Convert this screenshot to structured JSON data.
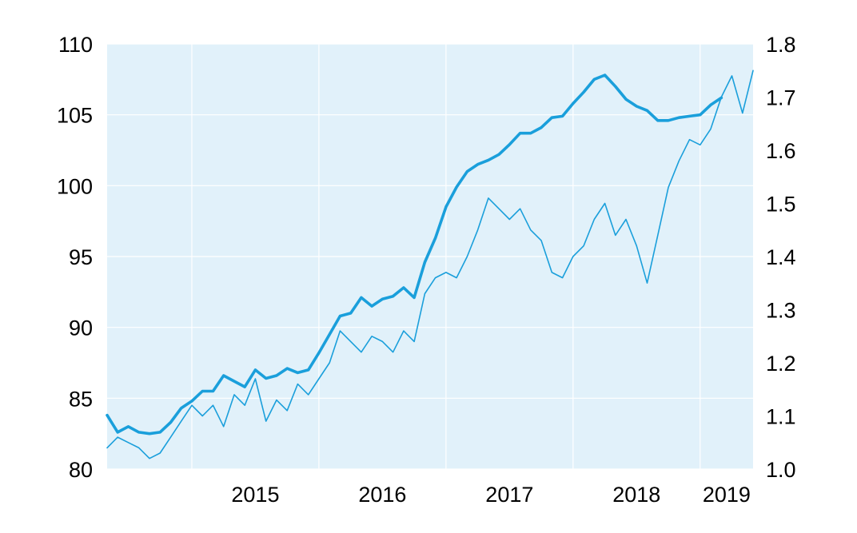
{
  "chart_data": {
    "type": "line",
    "title": "",
    "xlabel": "",
    "ylabel": "",
    "x_axis": {
      "type": "date",
      "range": [
        "2014-05",
        "2019-06"
      ],
      "ticks": [
        "2015",
        "2016",
        "2017",
        "2018",
        "2019"
      ]
    },
    "y_left": {
      "range": [
        80,
        110
      ],
      "ticks": [
        "80",
        "85",
        "90",
        "95",
        "100",
        "105",
        "110"
      ]
    },
    "y_right": {
      "range": [
        1.0,
        1.8
      ],
      "ticks": [
        "1.0",
        "1.1",
        "1.2",
        "1.3",
        "1.4",
        "1.5",
        "1.6",
        "1.7",
        "1.8"
      ]
    },
    "grid": true,
    "legend": "none",
    "colors": {
      "line": "#1a9fdb",
      "plot_background": "#e1f1fa",
      "grid": "#ffffff"
    },
    "series": [
      {
        "axis": "left",
        "line_style": "thick",
        "x": [
          "2014-05",
          "2014-06",
          "2014-07",
          "2014-08",
          "2014-09",
          "2014-10",
          "2014-11",
          "2014-12",
          "2015-01",
          "2015-02",
          "2015-03",
          "2015-04",
          "2015-05",
          "2015-06",
          "2015-07",
          "2015-08",
          "2015-09",
          "2015-10",
          "2015-11",
          "2015-12",
          "2016-01",
          "2016-02",
          "2016-03",
          "2016-04",
          "2016-05",
          "2016-06",
          "2016-07",
          "2016-08",
          "2016-09",
          "2016-10",
          "2016-11",
          "2016-12",
          "2017-01",
          "2017-02",
          "2017-03",
          "2017-04",
          "2017-05",
          "2017-06",
          "2017-07",
          "2017-08",
          "2017-09",
          "2017-10",
          "2017-11",
          "2017-12",
          "2018-01",
          "2018-02",
          "2018-03",
          "2018-04",
          "2018-05",
          "2018-06",
          "2018-07",
          "2018-08",
          "2018-09",
          "2018-10",
          "2018-11",
          "2018-12",
          "2019-01",
          "2019-02",
          "2019-03",
          "2019-04"
        ],
        "values": [
          83.8,
          82.6,
          83,
          82.6,
          82.5,
          82.6,
          83.3,
          84.3,
          84.8,
          85.5,
          85.5,
          86.6,
          86.2,
          85.8,
          87,
          86.4,
          86.6,
          87.1,
          86.8,
          87,
          88.2,
          89.5,
          90.8,
          91,
          92.1,
          91.5,
          92,
          92.2,
          92.8,
          92.1,
          94.6,
          96.3,
          98.5,
          99.9,
          101,
          101.5,
          101.8,
          102.2,
          102.9,
          103.7,
          103.7,
          104.1,
          104.8,
          104.9,
          105.8,
          106.6,
          107.5,
          107.8,
          107,
          106.1,
          105.6,
          105.3,
          104.6,
          104.6,
          104.8,
          104.9,
          105,
          105.7,
          106.2,
          null
        ]
      },
      {
        "axis": "right",
        "line_style": "thin",
        "x": [
          "2014-05",
          "2014-06",
          "2014-07",
          "2014-08",
          "2014-09",
          "2014-10",
          "2014-11",
          "2014-12",
          "2015-01",
          "2015-02",
          "2015-03",
          "2015-04",
          "2015-05",
          "2015-06",
          "2015-07",
          "2015-08",
          "2015-09",
          "2015-10",
          "2015-11",
          "2015-12",
          "2016-01",
          "2016-02",
          "2016-03",
          "2016-04",
          "2016-05",
          "2016-06",
          "2016-07",
          "2016-08",
          "2016-09",
          "2016-10",
          "2016-11",
          "2016-12",
          "2017-01",
          "2017-02",
          "2017-03",
          "2017-04",
          "2017-05",
          "2017-06",
          "2017-07",
          "2017-08",
          "2017-09",
          "2017-10",
          "2017-11",
          "2017-12",
          "2018-01",
          "2018-02",
          "2018-03",
          "2018-04",
          "2018-05",
          "2018-06",
          "2018-07",
          "2018-08",
          "2018-09",
          "2018-10",
          "2018-11",
          "2018-12",
          "2019-01",
          "2019-02",
          "2019-03",
          "2019-04",
          "2019-05",
          "2019-06"
        ],
        "values": [
          1.04,
          1.06,
          1.05,
          1.04,
          1.02,
          1.03,
          1.06,
          1.09,
          1.12,
          1.1,
          1.12,
          1.08,
          1.14,
          1.12,
          1.17,
          1.09,
          1.13,
          1.11,
          1.16,
          1.14,
          1.17,
          1.2,
          1.26,
          1.24,
          1.22,
          1.25,
          1.24,
          1.22,
          1.26,
          1.24,
          1.33,
          1.36,
          1.37,
          1.36,
          1.4,
          1.45,
          1.51,
          1.49,
          1.47,
          1.49,
          1.45,
          1.43,
          1.37,
          1.36,
          1.4,
          1.42,
          1.47,
          1.5,
          1.44,
          1.47,
          1.42,
          1.35,
          1.44,
          1.53,
          1.58,
          1.62,
          1.61,
          1.64,
          1.7,
          1.74,
          1.67,
          1.75
        ]
      }
    ]
  }
}
